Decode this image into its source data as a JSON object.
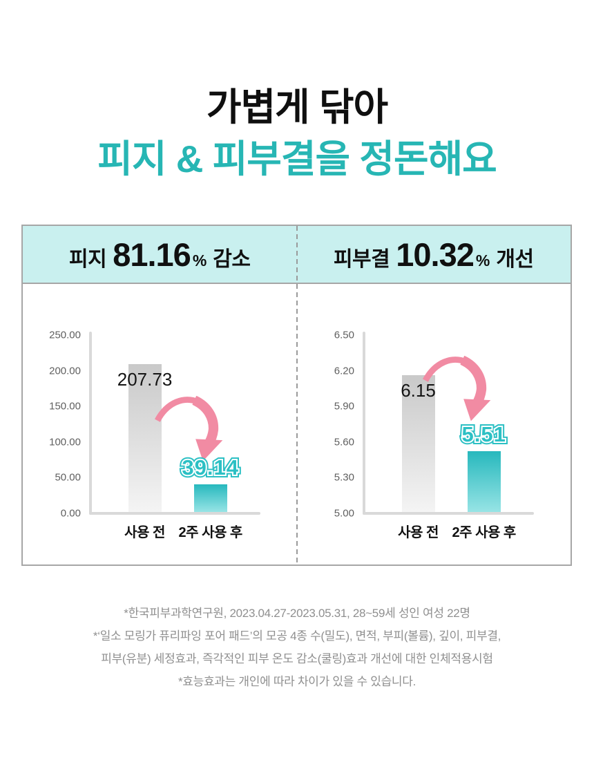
{
  "header": {
    "title_line1": "가볍게 닦아",
    "title_line2": "피지 & 피부결을 정돈해요"
  },
  "panels": [
    {
      "label_prefix": "피지",
      "value": "81.16",
      "percent_sign": "%",
      "label_suffix": "감소"
    },
    {
      "label_prefix": "피부결",
      "value": "10.32",
      "percent_sign": "%",
      "label_suffix": "개선"
    }
  ],
  "chart_data": [
    {
      "type": "bar",
      "title": "피지 81.16% 감소",
      "categories": [
        "사용 전",
        "2주 사용 후"
      ],
      "values": [
        207.73,
        39.14
      ],
      "value_labels": [
        "207.73",
        "39.14"
      ],
      "ylim": [
        0,
        250
      ],
      "ytick_labels": [
        "250.00",
        "200.00",
        "150.00",
        "100.00",
        "50.00",
        "0.00"
      ],
      "grid": false,
      "legend": false
    },
    {
      "type": "bar",
      "title": "피부결 10.32% 개선",
      "categories": [
        "사용 전",
        "2주 사용 후"
      ],
      "values": [
        6.15,
        5.51
      ],
      "value_labels": [
        "6.15",
        "5.51"
      ],
      "ylim": [
        5.0,
        6.5
      ],
      "ytick_labels": [
        "6.50",
        "6.20",
        "5.90",
        "5.60",
        "5.30",
        "5.00"
      ],
      "grid": false,
      "legend": false
    }
  ],
  "footnotes": [
    "*한국피부과학연구원, 2023.04.27-2023.05.31, 28~59세 성인 여성 22명",
    "*‘일소 모링가 퓨리파잉 포어 패드’의 모공 4종 수(밀도), 면적, 부피(볼륨), 깊이, 피부결,",
    "피부(유분) 세정효과, 즉각적인 피부 온도 감소(쿨링)효과 개선에 대한 인체적용시험",
    "*효능효과는 개인에 따라 차이가 있을 수 있습니다."
  ],
  "colors": {
    "accent": "#27b6b4",
    "header-bg": "#c9f0ef",
    "pink": "#f18ba3",
    "bubble-teal": "#2cc0c4",
    "teal-top": "#27b8bd",
    "teal-bottom": "#97e4e5",
    "gray-top": "#c9c9c9",
    "gray-bottom": "#f4f4f4",
    "border": "#a6a6a6",
    "axis": "#d9d9d9",
    "tick-text": "#5f5f5f",
    "footnote-text": "#8f8f8f"
  }
}
